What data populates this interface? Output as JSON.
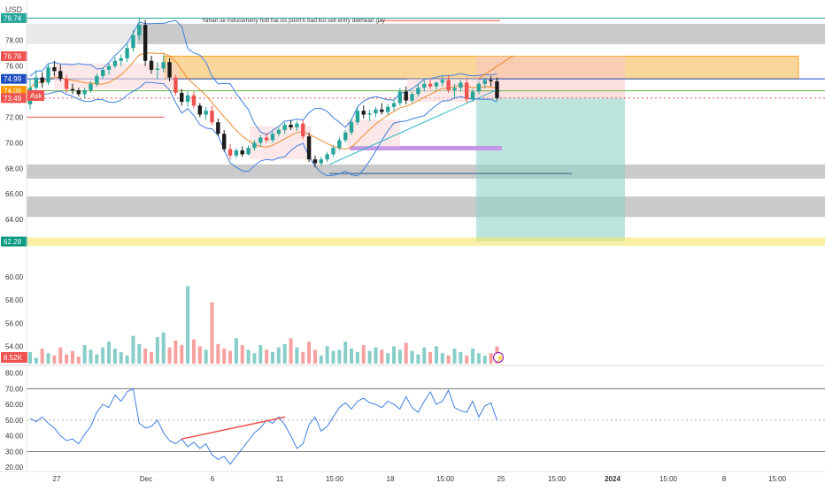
{
  "currency_label": "USD",
  "annotation": "Yahan se inducemeny hoti hai iss point k bad koi sell entry dekhean gay",
  "ask_label": "Ask",
  "price_badges": [
    {
      "text": "79.74",
      "color": "#26a69a",
      "value": 79.74
    },
    {
      "text": "76.76",
      "color": "#ef5350",
      "value": 76.76
    },
    {
      "text": "74.99",
      "color": "#1f4fbf",
      "value": 74.99
    },
    {
      "text": "74.06",
      "color": "#ff9800",
      "value": 74.06
    },
    {
      "text": "73.49",
      "color": "#ef5350",
      "value": 73.49
    },
    {
      "text": "62.28",
      "color": "#089981",
      "value": 62.28
    }
  ],
  "volume_badge": "8.52K",
  "colors": {
    "up": "#26a69a",
    "down": "#ef5350",
    "band": "#3f7fe0",
    "ma": "#f0892b",
    "rsi": "#3f7fe0",
    "zone_orange": "#f7a41f",
    "zone_gray": "#9e9e9e",
    "target_teal": "#8fd6c7",
    "stop_pink": "#f7c6c6",
    "purple": "#c497e6",
    "yellow": "#f5e66a"
  },
  "chart_data": [
    {
      "type": "candlestick",
      "series": [
        {
          "name": "",
          "values": [
            [
              73.0,
              75.0,
              72.6,
              74.3
            ],
            [
              74.3,
              75.6,
              73.8,
              75.1
            ],
            [
              75.1,
              75.5,
              74.3,
              74.7
            ],
            [
              74.7,
              76.2,
              74.5,
              75.9
            ],
            [
              75.9,
              76.4,
              75.2,
              75.6
            ],
            [
              75.6,
              76.1,
              74.8,
              75.0
            ],
            [
              75.0,
              75.3,
              73.9,
              74.2
            ],
            [
              74.2,
              74.6,
              73.8,
              74.1
            ],
            [
              74.1,
              74.3,
              73.6,
              73.8
            ],
            [
              73.8,
              74.3,
              73.5,
              74.1
            ],
            [
              74.1,
              74.8,
              73.9,
              74.6
            ],
            [
              74.6,
              75.4,
              74.4,
              75.2
            ],
            [
              75.2,
              75.9,
              75.0,
              75.7
            ],
            [
              75.7,
              76.2,
              75.3,
              76.0
            ],
            [
              76.0,
              76.7,
              75.8,
              76.4
            ],
            [
              76.4,
              76.9,
              76.0,
              76.6
            ],
            [
              76.6,
              77.8,
              76.3,
              77.4
            ],
            [
              77.4,
              78.8,
              77.1,
              78.4
            ],
            [
              78.4,
              79.8,
              78.0,
              79.2
            ],
            [
              79.2,
              79.6,
              76.0,
              76.4
            ],
            [
              76.4,
              76.8,
              75.4,
              75.7
            ],
            [
              75.7,
              76.3,
              75.0,
              75.8
            ],
            [
              75.8,
              76.9,
              75.5,
              76.3
            ],
            [
              76.3,
              76.6,
              74.8,
              75.1
            ],
            [
              75.1,
              75.3,
              73.7,
              73.9
            ],
            [
              73.9,
              74.2,
              72.9,
              73.2
            ],
            [
              73.2,
              74.0,
              72.8,
              73.7
            ],
            [
              73.7,
              74.0,
              72.7,
              72.9
            ],
            [
              72.9,
              73.1,
              72.0,
              72.2
            ],
            [
              72.2,
              72.8,
              71.8,
              72.5
            ],
            [
              72.5,
              72.9,
              71.4,
              71.6
            ],
            [
              71.6,
              71.9,
              70.5,
              70.7
            ],
            [
              70.7,
              71.0,
              69.3,
              69.5
            ],
            [
              69.5,
              69.9,
              68.7,
              69.0
            ],
            [
              69.0,
              69.6,
              68.8,
              69.4
            ],
            [
              69.4,
              69.7,
              68.9,
              69.1
            ],
            [
              69.1,
              69.8,
              69.0,
              69.6
            ],
            [
              69.6,
              70.2,
              69.4,
              70.0
            ],
            [
              70.0,
              70.6,
              69.7,
              70.4
            ],
            [
              70.4,
              70.8,
              70.0,
              70.2
            ],
            [
              70.2,
              70.9,
              70.0,
              70.7
            ],
            [
              70.7,
              71.2,
              70.5,
              71.0
            ],
            [
              71.0,
              71.6,
              70.7,
              71.4
            ],
            [
              71.4,
              71.8,
              71.0,
              71.2
            ],
            [
              71.2,
              71.7,
              70.9,
              71.5
            ],
            [
              71.5,
              71.8,
              70.3,
              70.5
            ],
            [
              70.5,
              70.8,
              68.5,
              68.7
            ],
            [
              68.7,
              69.0,
              68.1,
              68.4
            ],
            [
              68.4,
              68.9,
              68.2,
              68.7
            ],
            [
              68.7,
              69.3,
              68.5,
              69.1
            ],
            [
              69.1,
              69.8,
              68.9,
              69.6
            ],
            [
              69.6,
              70.4,
              69.4,
              70.2
            ],
            [
              70.2,
              71.0,
              70.0,
              70.8
            ],
            [
              70.8,
              71.9,
              70.6,
              71.6
            ],
            [
              71.6,
              72.8,
              71.4,
              72.5
            ],
            [
              72.5,
              72.9,
              71.9,
              72.2
            ],
            [
              72.2,
              72.6,
              71.7,
              72.3
            ],
            [
              72.3,
              72.8,
              72.0,
              72.6
            ],
            [
              72.6,
              73.1,
              72.2,
              72.4
            ],
            [
              72.4,
              73.0,
              72.2,
              72.8
            ],
            [
              72.8,
              73.4,
              72.5,
              73.1
            ],
            [
              73.1,
              74.3,
              72.9,
              74.0
            ],
            [
              74.0,
              74.4,
              73.0,
              73.3
            ],
            [
              73.3,
              74.0,
              73.1,
              73.8
            ],
            [
              73.8,
              74.6,
              73.6,
              74.3
            ],
            [
              74.3,
              74.9,
              74.0,
              74.6
            ],
            [
              74.6,
              75.0,
              74.2,
              74.4
            ],
            [
              74.4,
              74.8,
              74.1,
              74.7
            ],
            [
              74.7,
              75.2,
              74.4,
              74.9
            ],
            [
              74.9,
              75.3,
              73.9,
              74.1
            ],
            [
              74.1,
              74.6,
              73.5,
              74.3
            ],
            [
              74.3,
              74.9,
              74.0,
              74.7
            ],
            [
              74.7,
              75.0,
              73.1,
              73.4
            ],
            [
              73.4,
              74.2,
              73.2,
              74.0
            ],
            [
              74.0,
              74.8,
              73.8,
              74.6
            ],
            [
              74.6,
              75.1,
              74.3,
              74.9
            ],
            [
              74.9,
              75.2,
              74.4,
              74.8
            ],
            [
              74.8,
              75.1,
              73.3,
              73.49
            ]
          ]
        }
      ],
      "ylim": [
        61.8,
        80.6
      ],
      "y_ticks": [
        "78.00",
        "76.00",
        "74.00",
        "72.00",
        "70.00",
        "68.00",
        "66.00",
        "64.00"
      ],
      "x_ticks": [
        "27",
        "Dec",
        "6",
        "11",
        "15:00",
        "18",
        "15:00",
        "25",
        "15:00",
        "2024",
        "15:00",
        "8",
        "15:00"
      ],
      "zones": [
        {
          "kind": "supply",
          "y1": 77.7,
          "y2": 79.3
        },
        {
          "kind": "supply",
          "y1": 74.99,
          "y2": 76.76
        },
        {
          "kind": "demand",
          "y1": 67.2,
          "y2": 68.3
        },
        {
          "kind": "demand",
          "y1": 64.2,
          "y2": 65.8
        }
      ],
      "position": {
        "entry": 73.49,
        "stop": 76.76,
        "target": 62.28
      }
    },
    {
      "type": "bar",
      "title": "",
      "y_ticks": [
        "60.00",
        "58.00",
        "56.00",
        "54.00"
      ],
      "ylim": [
        52.5,
        61.0
      ],
      "series": [
        {
          "name": "",
          "values": [
            53.5,
            53.0,
            53.8,
            53.4,
            53.2,
            53.9,
            53.3,
            53.6,
            53.1,
            54.1,
            53.7,
            53.3,
            53.9,
            54.4,
            53.8,
            53.5,
            53.2,
            54.9,
            54.2,
            53.8,
            53.5,
            54.8,
            55.2,
            53.9,
            54.5,
            54.1,
            59.2,
            54.6,
            54.0,
            53.7,
            57.8,
            54.2,
            53.8,
            53.6,
            54.7,
            54.1,
            53.7,
            53.4,
            54.1,
            53.7,
            53.5,
            53.9,
            54.2,
            54.7,
            53.9,
            53.5,
            54.4,
            53.7,
            53.2,
            54.0,
            53.6,
            53.7,
            54.4,
            53.8,
            53.5,
            54.1,
            53.6,
            53.9,
            53.7,
            53.4,
            54.0,
            53.7,
            54.3,
            53.6,
            53.3,
            53.9,
            53.5,
            54.0,
            53.4,
            53.2,
            53.8,
            53.5,
            53.2,
            53.8,
            53.4,
            53.2,
            53.4,
            54.0
          ]
        }
      ]
    },
    {
      "type": "line",
      "title": "",
      "y_ticks": [
        "80.00",
        "70.00",
        "60.00",
        "50.00",
        "40.00",
        "30.00",
        "20.00"
      ],
      "ylim": [
        19,
        82
      ],
      "levels": [
        70,
        50,
        30
      ],
      "series": [
        {
          "name": "",
          "values": [
            51,
            49,
            52,
            48,
            45,
            40,
            37,
            38,
            35,
            41,
            46,
            55,
            60,
            58,
            66,
            62,
            68,
            70,
            48,
            45,
            46,
            50,
            42,
            37,
            35,
            38,
            33,
            36,
            32,
            35,
            28,
            25,
            27,
            22,
            27,
            32,
            37,
            42,
            45,
            50,
            48,
            52,
            47,
            40,
            32,
            35,
            47,
            52,
            43,
            46,
            52,
            58,
            61,
            57,
            62,
            64,
            61,
            60,
            58,
            62,
            60,
            57,
            65,
            58,
            55,
            62,
            68,
            60,
            62,
            69,
            58,
            56,
            55,
            62,
            52,
            59,
            61,
            50
          ]
        }
      ]
    }
  ]
}
